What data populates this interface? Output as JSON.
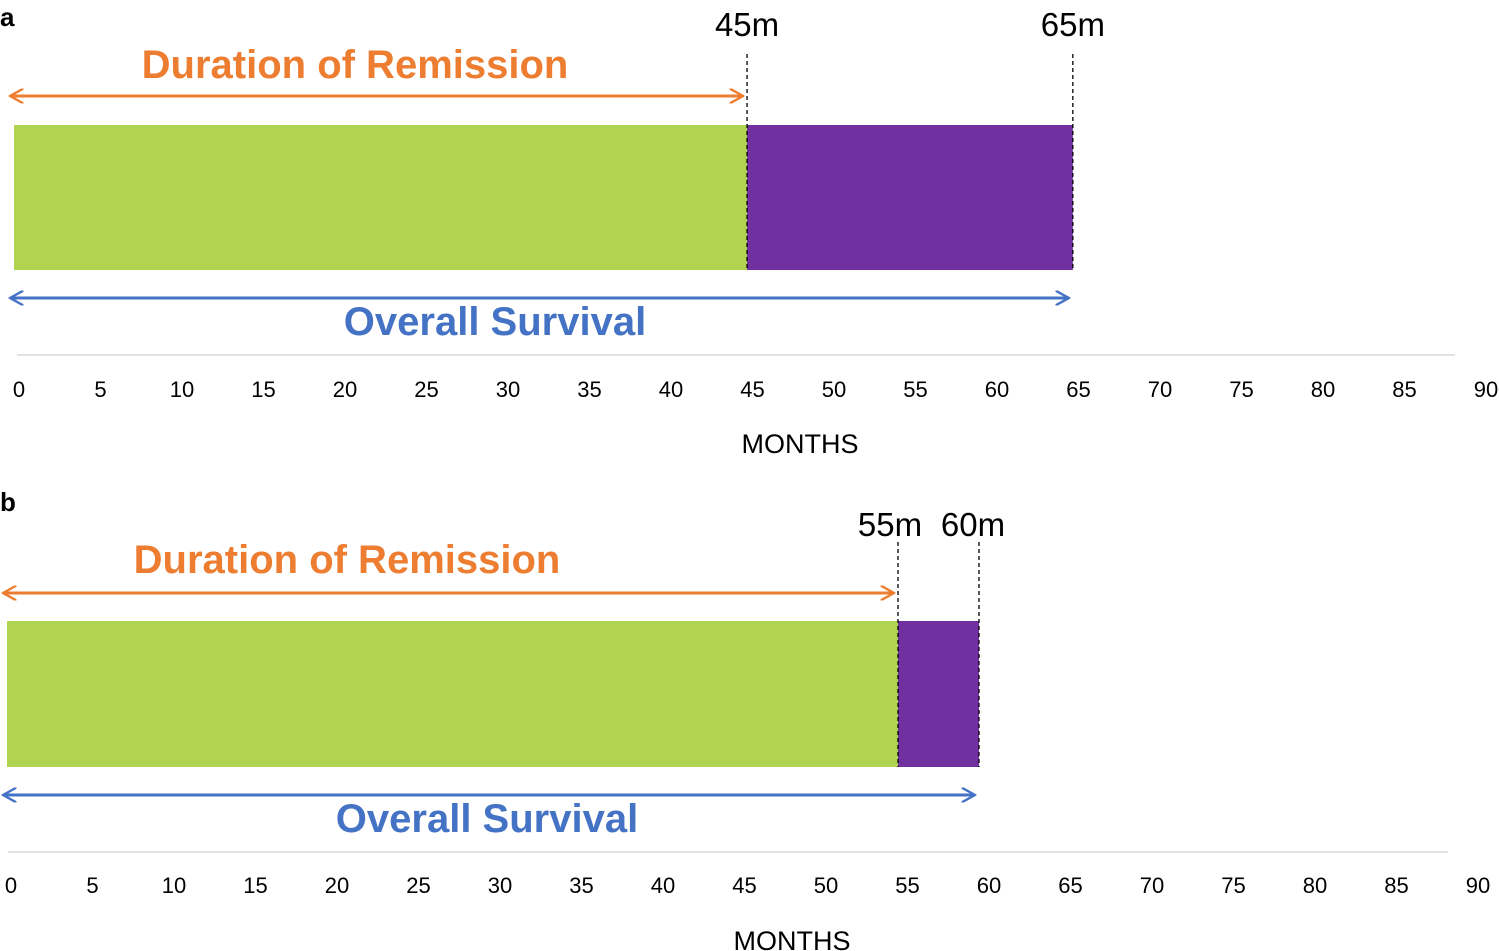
{
  "chart_data": [
    {
      "type": "bar",
      "panel_label": "a",
      "orientation": "horizontal",
      "segments": [
        {
          "start": 0,
          "end": 45,
          "color": "#B1D450"
        },
        {
          "start": 45,
          "end": 65,
          "color": "#7030A0"
        }
      ],
      "arrows": [
        {
          "label": "Duration of Remission",
          "start": 0,
          "end": 45,
          "color": "#ED7D31",
          "position": "above"
        },
        {
          "label": "Overall Survival",
          "start": 0,
          "end": 65,
          "color": "#4472C4",
          "position": "below"
        }
      ],
      "markers": [
        {
          "value": 45,
          "label": "45m"
        },
        {
          "value": 65,
          "label": "65m"
        }
      ],
      "xlabel": "MONTHS",
      "xlim": [
        0,
        90
      ],
      "xticks": [
        "0",
        "5",
        "10",
        "15",
        "20",
        "25",
        "30",
        "35",
        "40",
        "45",
        "50",
        "55",
        "60",
        "65",
        "70",
        "75",
        "80",
        "85",
        "90"
      ]
    },
    {
      "type": "bar",
      "panel_label": "b",
      "orientation": "horizontal",
      "segments": [
        {
          "start": 0,
          "end": 55,
          "color": "#B1D450"
        },
        {
          "start": 55,
          "end": 60,
          "color": "#7030A0"
        }
      ],
      "arrows": [
        {
          "label": "Duration of Remission",
          "start": 0,
          "end": 55,
          "color": "#ED7D31",
          "position": "above"
        },
        {
          "label": "Overall Survival",
          "start": 0,
          "end": 60,
          "color": "#4472C4",
          "position": "below"
        }
      ],
      "markers": [
        {
          "value": 55,
          "label": "55m"
        },
        {
          "value": 60,
          "label": "60m"
        }
      ],
      "xlabel": "MONTHS",
      "xlim": [
        0,
        90
      ],
      "xticks": [
        "0",
        "5",
        "10",
        "15",
        "20",
        "25",
        "30",
        "35",
        "40",
        "45",
        "50",
        "55",
        "60",
        "65",
        "70",
        "75",
        "80",
        "85",
        "90"
      ]
    }
  ]
}
